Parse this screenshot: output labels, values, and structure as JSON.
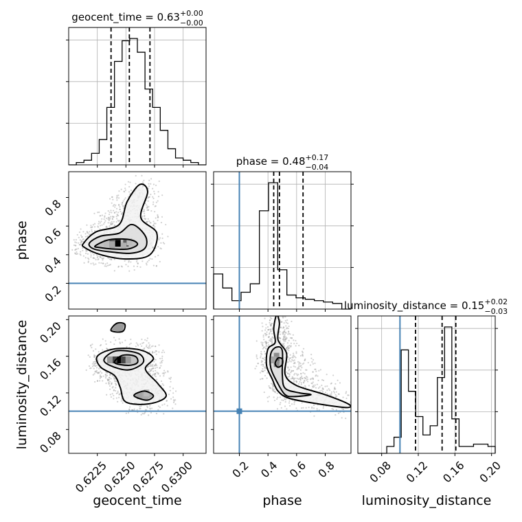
{
  "chart_data": {
    "type": "corner",
    "parameters": [
      {
        "name": "geocent_time",
        "range": [
          0.62,
          0.632
        ],
        "ticks": [
          0.6225,
          0.625,
          0.6275,
          0.63
        ],
        "tick_labels": [
          "0.6225",
          "0.6250",
          "0.6275",
          "0.6300"
        ],
        "title": {
          "prefix": "geocent_time = 0.63",
          "plus": "+0.00",
          "minus": "−0.00"
        },
        "quantiles": [
          0.6237,
          0.6253,
          0.6271
        ],
        "hist_values": [
          0,
          1,
          2,
          5,
          11,
          25,
          45,
          54,
          55,
          49,
          33,
          25,
          15,
          7,
          3,
          2,
          1,
          0
        ]
      },
      {
        "name": "phase",
        "range": [
          0.02,
          0.98
        ],
        "ticks": [
          0.2,
          0.4,
          0.6,
          0.8
        ],
        "tick_labels": [
          "0.2",
          "0.4",
          "0.6",
          "0.8"
        ],
        "title": {
          "prefix": "phase = 0.48",
          "plus": "+0.17",
          "minus": "−0.04"
        },
        "quantiles": [
          0.44,
          0.48,
          0.645
        ],
        "truth": 0.2,
        "hist_values": [
          2.5,
          1.5,
          0.6,
          1.2,
          1.8,
          7,
          9,
          2.8,
          1,
          0.8,
          0.7,
          0.6,
          0.5,
          0.4,
          0
        ]
      },
      {
        "name": "luminosity_distance",
        "range": [
          0.054,
          0.204
        ],
        "ticks": [
          0.08,
          0.12,
          0.16,
          0.2
        ],
        "tick_labels": [
          "0.08",
          "0.12",
          "0.16",
          "0.20"
        ],
        "title": {
          "prefix": "luminosity_distance = 0.15",
          "plus": "+0.02",
          "minus": "−0.03"
        },
        "quantiles": [
          0.117,
          0.146,
          0.161
        ],
        "truth": 0.1,
        "hist_values": [
          0,
          0,
          0,
          0,
          0.3,
          0.7,
          4.5,
          2.7,
          1.6,
          0.8,
          1.2,
          3.3,
          5.5,
          1.5,
          0.3,
          0.3,
          0.4,
          0.4,
          0.3
        ]
      }
    ],
    "axis_labels": {
      "geocent_time": "geocent_time",
      "phase": "phase",
      "luminosity_distance": "luminosity_distance"
    },
    "contours": {
      "time_phase": [
        [
          [
            0.6223,
            0.46
          ],
          [
            0.6233,
            0.5
          ],
          [
            0.6244,
            0.51
          ],
          [
            0.6256,
            0.5
          ],
          [
            0.626,
            0.47
          ],
          [
            0.6252,
            0.44
          ],
          [
            0.6238,
            0.44
          ],
          [
            0.6227,
            0.45
          ]
        ],
        [
          [
            0.6218,
            0.48
          ],
          [
            0.6228,
            0.53
          ],
          [
            0.6244,
            0.55
          ],
          [
            0.6254,
            0.61
          ],
          [
            0.6262,
            0.58
          ],
          [
            0.6268,
            0.51
          ],
          [
            0.6266,
            0.44
          ],
          [
            0.6254,
            0.41
          ],
          [
            0.6236,
            0.42
          ],
          [
            0.6222,
            0.44
          ]
        ],
        [
          [
            0.6213,
            0.48
          ],
          [
            0.6224,
            0.56
          ],
          [
            0.6244,
            0.61
          ],
          [
            0.6251,
            0.77
          ],
          [
            0.6262,
            0.89
          ],
          [
            0.6269,
            0.84
          ],
          [
            0.6263,
            0.66
          ],
          [
            0.6277,
            0.55
          ],
          [
            0.6271,
            0.4
          ],
          [
            0.625,
            0.37
          ],
          [
            0.6228,
            0.4
          ],
          [
            0.6214,
            0.45
          ]
        ]
      ],
      "time_dist": [
        [
          [
            0.624,
            0.153
          ],
          [
            0.6247,
            0.161
          ],
          [
            0.6258,
            0.16
          ],
          [
            0.626,
            0.153
          ],
          [
            0.6252,
            0.15
          ]
        ],
        [
          [
            0.6231,
            0.157
          ],
          [
            0.6242,
            0.166
          ],
          [
            0.6261,
            0.163
          ],
          [
            0.6265,
            0.153
          ],
          [
            0.6252,
            0.145
          ],
          [
            0.6236,
            0.15
          ]
        ],
        [
          [
            0.6225,
            0.16
          ],
          [
            0.624,
            0.168
          ],
          [
            0.6262,
            0.167
          ],
          [
            0.6274,
            0.158
          ],
          [
            0.6267,
            0.146
          ],
          [
            0.6278,
            0.13
          ],
          [
            0.6285,
            0.116
          ],
          [
            0.627,
            0.108
          ],
          [
            0.625,
            0.11
          ],
          [
            0.6245,
            0.126
          ],
          [
            0.624,
            0.139
          ],
          [
            0.6228,
            0.148
          ]
        ],
        [
          [
            0.6257,
            0.117
          ],
          [
            0.6266,
            0.122
          ],
          [
            0.6274,
            0.117
          ],
          [
            0.6268,
            0.112
          ]
        ],
        [
          [
            0.6237,
            0.188
          ],
          [
            0.6242,
            0.196
          ],
          [
            0.6249,
            0.195
          ],
          [
            0.6247,
            0.187
          ]
        ]
      ],
      "phase_dist": [
        [
          [
            0.45,
            0.152
          ],
          [
            0.47,
            0.158
          ],
          [
            0.5,
            0.157
          ],
          [
            0.5,
            0.151
          ],
          [
            0.47,
            0.148
          ]
        ],
        [
          [
            0.42,
            0.147
          ],
          [
            0.42,
            0.163
          ],
          [
            0.46,
            0.17
          ],
          [
            0.5,
            0.166
          ],
          [
            0.5,
            0.14
          ],
          [
            0.52,
            0.125
          ],
          [
            0.62,
            0.12
          ],
          [
            0.7,
            0.118
          ],
          [
            0.58,
            0.116
          ],
          [
            0.52,
            0.118
          ],
          [
            0.47,
            0.13
          ]
        ],
        [
          [
            0.39,
            0.15
          ],
          [
            0.4,
            0.168
          ],
          [
            0.45,
            0.175
          ],
          [
            0.44,
            0.19
          ],
          [
            0.46,
            0.205
          ],
          [
            0.48,
            0.196
          ],
          [
            0.47,
            0.178
          ],
          [
            0.53,
            0.163
          ],
          [
            0.52,
            0.14
          ],
          [
            0.6,
            0.128
          ],
          [
            0.8,
            0.118
          ],
          [
            0.96,
            0.108
          ],
          [
            0.95,
            0.104
          ],
          [
            0.75,
            0.108
          ],
          [
            0.55,
            0.114
          ],
          [
            0.47,
            0.122
          ],
          [
            0.43,
            0.135
          ]
        ]
      ]
    },
    "density_peaks": {
      "time_phase": [
        [
          0.6243,
          0.48,
          1.0
        ],
        [
          0.6238,
          0.48,
          0.6
        ],
        [
          0.625,
          0.48,
          0.6
        ],
        [
          0.6238,
          0.47,
          0.3
        ],
        [
          0.6248,
          0.46,
          0.25
        ],
        [
          0.6253,
          0.49,
          0.2
        ],
        [
          0.6233,
          0.48,
          0.2
        ]
      ],
      "time_dist": [
        [
          0.6244,
          0.156,
          1.0
        ],
        [
          0.624,
          0.156,
          0.7
        ],
        [
          0.6248,
          0.156,
          0.7
        ],
        [
          0.6236,
          0.156,
          0.35
        ],
        [
          0.6252,
          0.156,
          0.35
        ],
        [
          0.6262,
          0.117,
          0.3
        ],
        [
          0.6268,
          0.12,
          0.2
        ]
      ],
      "phase_dist": [
        [
          0.46,
          0.156,
          1.0
        ],
        [
          0.46,
          0.16,
          0.4
        ],
        [
          0.46,
          0.152,
          0.4
        ],
        [
          0.44,
          0.156,
          0.3
        ]
      ]
    }
  }
}
